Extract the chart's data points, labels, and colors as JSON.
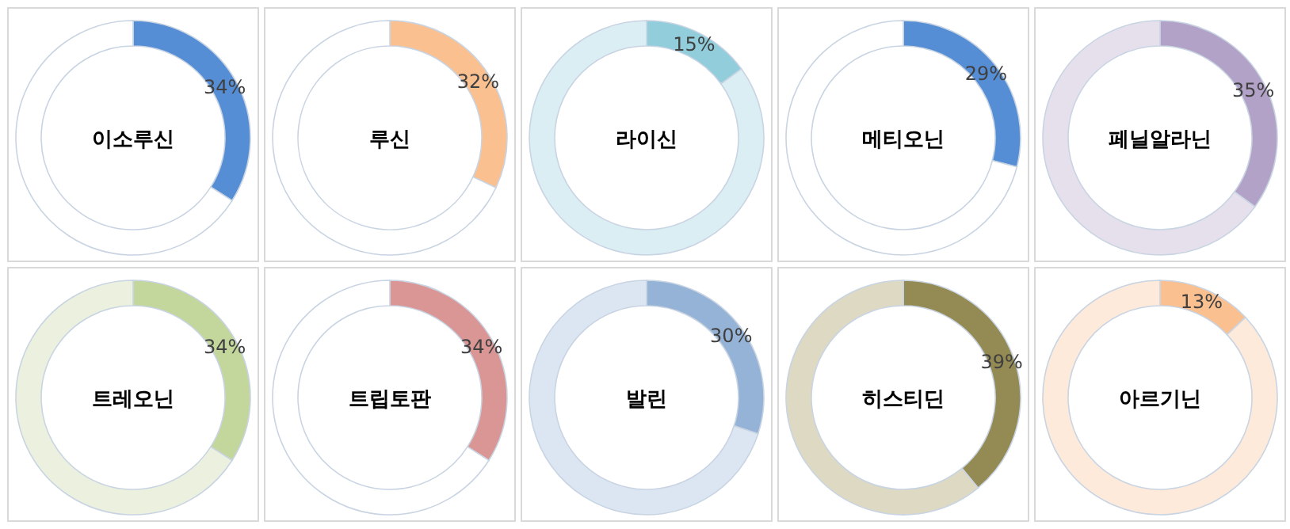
{
  "chart_data": [
    {
      "type": "donut",
      "title": "이소루신",
      "categories": [
        null,
        null
      ],
      "values": [
        34,
        66
      ],
      "colors": [
        "#558ed5",
        "#ffffff"
      ],
      "value_labels": [
        "34%",
        null
      ]
    },
    {
      "type": "donut",
      "title": "루신",
      "categories": [
        null,
        null
      ],
      "values": [
        32,
        68
      ],
      "colors": [
        "#fac090",
        "#ffffff"
      ],
      "value_labels": [
        "32%",
        null
      ]
    },
    {
      "type": "donut",
      "title": "라이신",
      "categories": [
        null,
        null
      ],
      "values": [
        15,
        85
      ],
      "colors": [
        "#92cddc",
        "#dbeef3"
      ],
      "value_labels": [
        "15%",
        null
      ]
    },
    {
      "type": "donut",
      "title": "메티오닌",
      "categories": [
        null,
        null
      ],
      "values": [
        29,
        71
      ],
      "colors": [
        "#558ed5",
        "#ffffff"
      ],
      "value_labels": [
        "29%",
        null
      ]
    },
    {
      "type": "donut",
      "title": "페닐알라닌",
      "categories": [
        null,
        null
      ],
      "values": [
        35,
        65
      ],
      "colors": [
        "#b3a2c7",
        "#e5e0ec"
      ],
      "value_labels": [
        "35%",
        null
      ]
    },
    {
      "type": "donut",
      "title": "트레오닌",
      "categories": [
        null,
        null
      ],
      "values": [
        34,
        66
      ],
      "colors": [
        "#c3d69b",
        "#ebf1de"
      ],
      "value_labels": [
        "34%",
        null
      ]
    },
    {
      "type": "donut",
      "title": "트립토판",
      "categories": [
        null,
        null
      ],
      "values": [
        34,
        66
      ],
      "colors": [
        "#d99694",
        "#ffffff"
      ],
      "value_labels": [
        "34%",
        null
      ]
    },
    {
      "type": "donut",
      "title": "발린",
      "categories": [
        null,
        null
      ],
      "values": [
        30,
        70
      ],
      "colors": [
        "#95b3d7",
        "#dce6f2"
      ],
      "value_labels": [
        "30%",
        null
      ]
    },
    {
      "type": "donut",
      "title": "히스티딘",
      "categories": [
        null,
        null
      ],
      "values": [
        39,
        61
      ],
      "colors": [
        "#948a54",
        "#ddd9c3"
      ],
      "value_labels": [
        "39%",
        null
      ]
    },
    {
      "type": "donut",
      "title": "아르기닌",
      "categories": [
        null,
        null
      ],
      "values": [
        13,
        87
      ],
      "colors": [
        "#fac090",
        "#fdeada"
      ],
      "value_labels": [
        "13%",
        null
      ]
    }
  ]
}
